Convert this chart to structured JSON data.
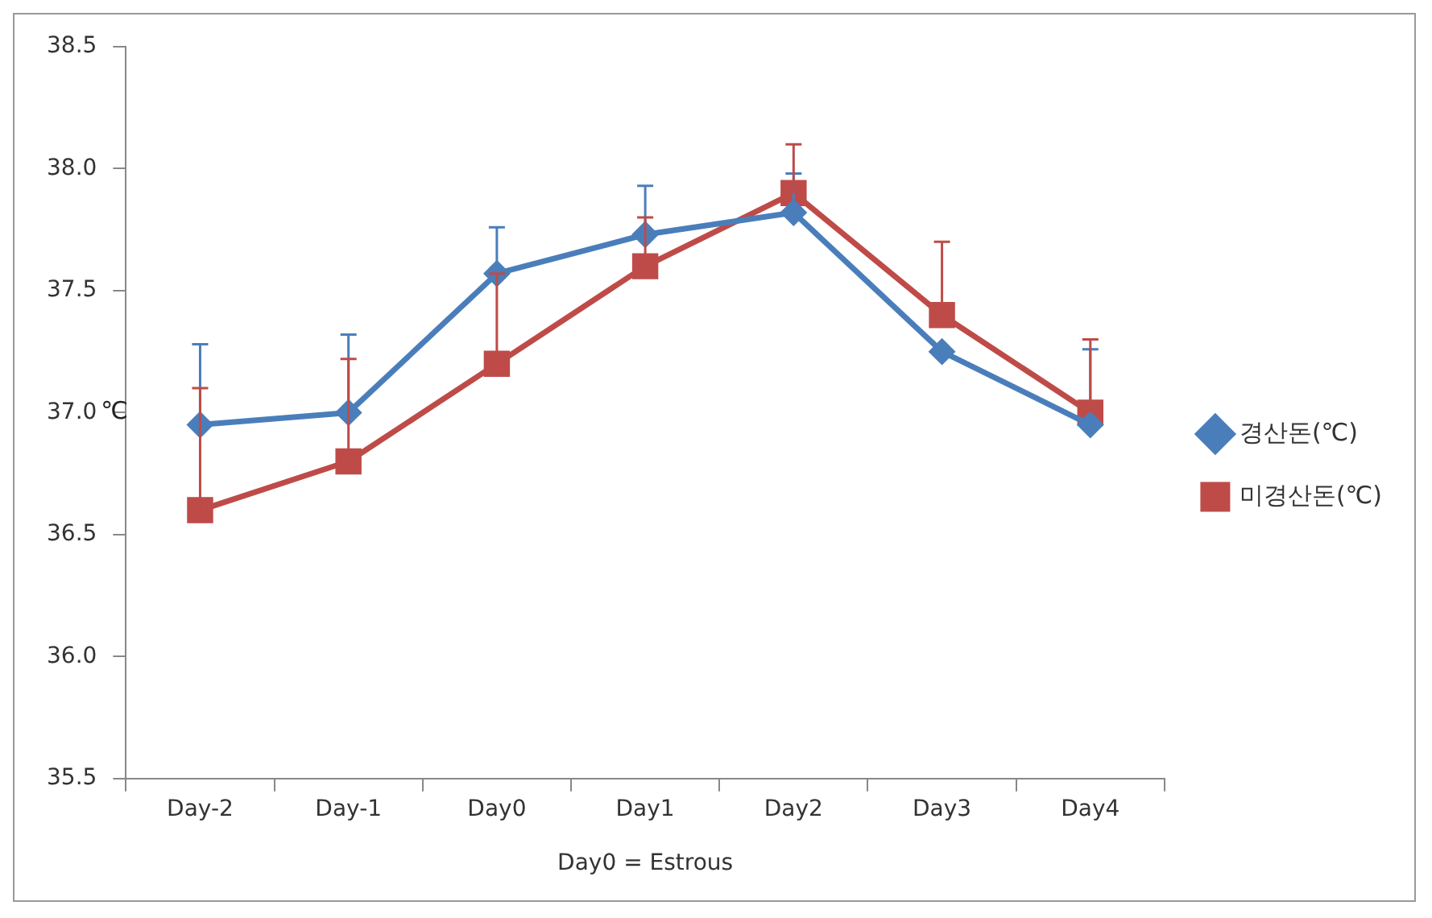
{
  "chart_data": {
    "type": "line",
    "xlabel": "Day0 = Estrous",
    "ylabel": "℃",
    "categories": [
      "Day-2",
      "Day-1",
      "Day0",
      "Day1",
      "Day2",
      "Day3",
      "Day4"
    ],
    "series": [
      {
        "name": "경산돈(℃)",
        "color": "#4a7ebb",
        "marker": "diamond",
        "values": [
          36.95,
          37.0,
          37.57,
          37.73,
          37.82,
          37.25,
          36.95
        ],
        "errors": [
          [
            36.95,
            37.28
          ],
          [
            37.0,
            37.32
          ],
          [
            37.57,
            37.76
          ],
          [
            37.73,
            37.93
          ],
          [
            37.82,
            37.98
          ],
          null,
          [
            36.95,
            37.26
          ]
        ]
      },
      {
        "name": "미경산돈(℃)",
        "color": "#be4b48",
        "marker": "square",
        "values": [
          36.6,
          36.8,
          37.2,
          37.6,
          37.9,
          37.4,
          37.0
        ],
        "errors": [
          [
            36.6,
            37.1
          ],
          [
            36.8,
            37.22
          ],
          [
            37.2,
            37.57
          ],
          [
            37.6,
            37.8
          ],
          [
            37.9,
            38.1
          ],
          [
            37.4,
            37.7
          ],
          [
            37.0,
            37.3
          ]
        ]
      }
    ],
    "ylim": [
      35.5,
      38.5
    ],
    "yticks": [
      35.5,
      {
        "value": 36,
        "label": "36.0"
      },
      36.5,
      {
        "value": 37,
        "label": "37.0"
      },
      37.5,
      {
        "value": 38,
        "label": "38.0"
      },
      38.5
    ],
    "grid": false,
    "legend": "right",
    "line_style": "solid"
  }
}
